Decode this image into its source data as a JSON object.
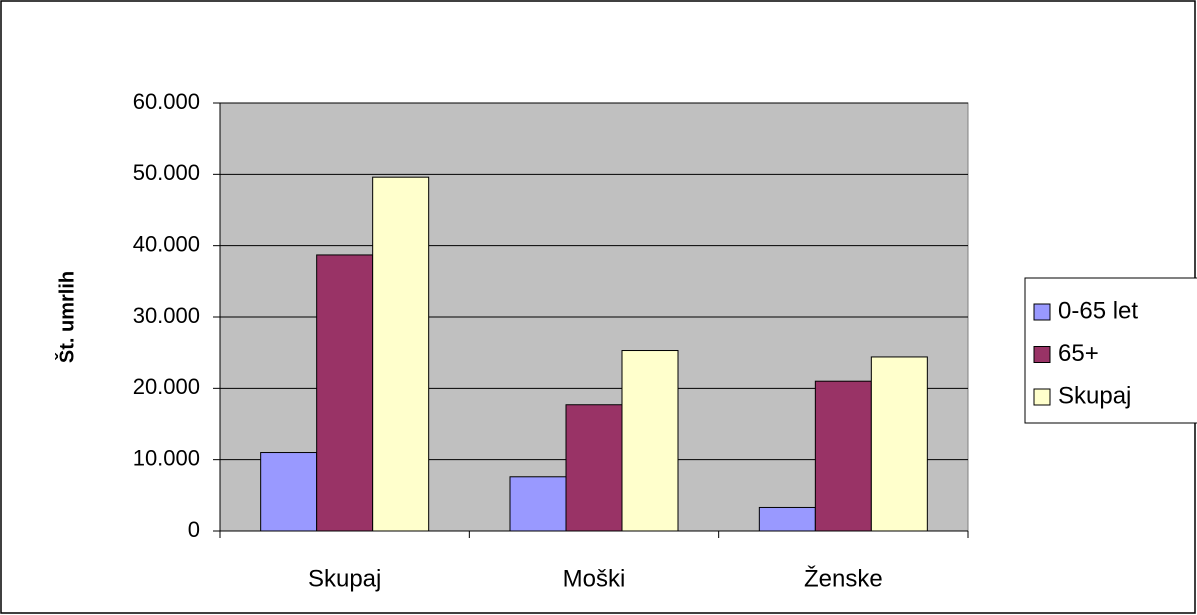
{
  "chart_data": {
    "type": "bar",
    "y_axis_label": "Št. umrlih",
    "categories": [
      "Skupaj",
      "Moški",
      "Ženske"
    ],
    "series": [
      {
        "name": "0-65 let",
        "color": "#9999ff",
        "values": [
          11000,
          7600,
          3300
        ]
      },
      {
        "name": "65+",
        "color": "#993366",
        "values": [
          38700,
          17700,
          21000
        ]
      },
      {
        "name": "Skupaj",
        "color": "#ffffcc",
        "values": [
          49600,
          25300,
          24400
        ]
      }
    ],
    "ylim": [
      0,
      60000
    ],
    "yticks": [
      0,
      {
        "value": 10000,
        "label": "10.000"
      },
      {
        "value": 20000,
        "label": "20.000"
      },
      {
        "value": 30000,
        "label": "30.000"
      },
      {
        "value": 40000,
        "label": "40.000"
      },
      {
        "value": 50000,
        "label": "50.000"
      },
      {
        "value": 60000,
        "label": "60.000"
      }
    ],
    "grid": true,
    "legend": "right",
    "plot_background": "#c0c0c0"
  }
}
